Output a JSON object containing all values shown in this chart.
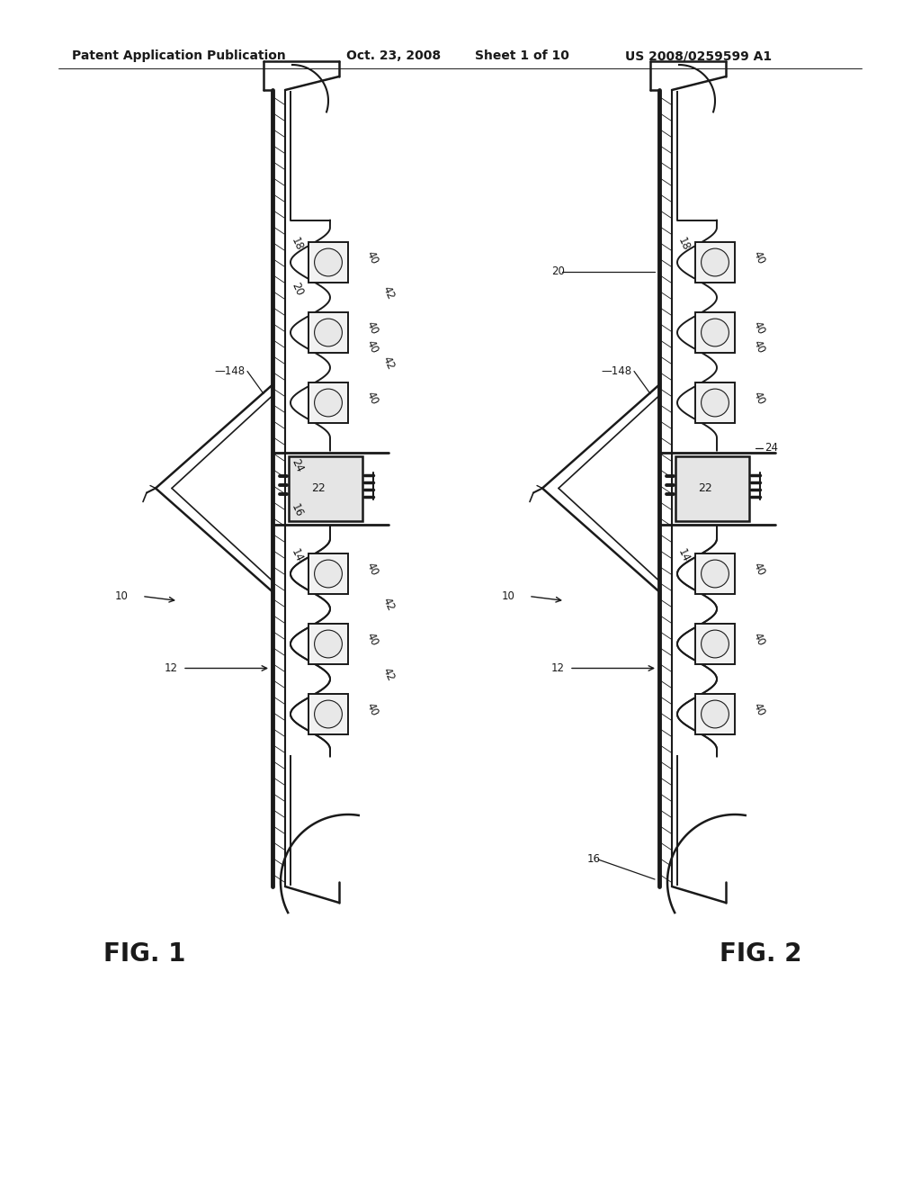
{
  "bg": "#ffffff",
  "lc": "#1a1a1a",
  "header1": "Patent Application Publication",
  "header2": "Oct. 23, 2008",
  "header3": "Sheet 1 of 10",
  "header4": "US 2008/0259599 A1",
  "fig1_caption": "FIG. 1",
  "fig2_caption": "FIG. 2"
}
